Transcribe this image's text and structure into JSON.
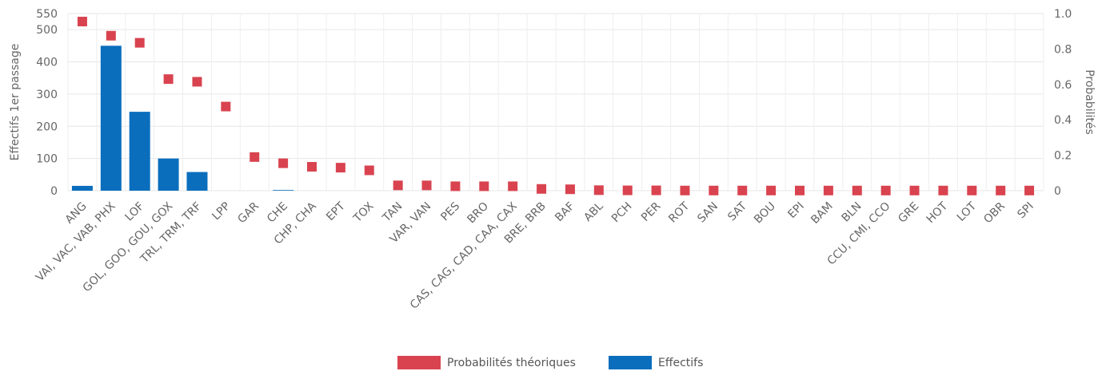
{
  "chart_data": {
    "type": "bar",
    "categories": [
      "ANG",
      "VAI, VAC, VAB, PHX",
      "LOF",
      "GOL, GOO, GOU, GOX",
      "TRL, TRM, TRF",
      "LPP",
      "GAR",
      "CHE",
      "CHP, CHA",
      "EPT",
      "TOX",
      "TAN",
      "VAR, VAN",
      "PES",
      "BRO",
      "CAS, CAG, CAD, CAA, CAX",
      "BRE, BRB",
      "BAF",
      "ABL",
      "PCH",
      "PER",
      "ROT",
      "SAN",
      "SAT",
      "BOU",
      "EPI",
      "BAM",
      "BLN",
      "CCU, CMI, CCO",
      "GRE",
      "HOT",
      "LOT",
      "OBR",
      "SPI"
    ],
    "series": [
      {
        "name": "Effectifs",
        "axis": "left",
        "mark": "bar",
        "color": "#0a6ebd",
        "values": [
          15,
          450,
          245,
          100,
          58,
          0,
          0,
          2,
          0,
          0,
          0,
          0,
          0,
          0,
          0,
          0,
          0,
          0,
          0,
          0,
          0,
          0,
          0,
          0,
          0,
          0,
          0,
          0,
          0,
          0,
          0,
          0,
          0,
          0
        ]
      },
      {
        "name": "Probabilités théoriques",
        "axis": "right",
        "mark": "square",
        "color": "#d9434f",
        "values": [
          0.955,
          0.875,
          0.835,
          0.63,
          0.615,
          0.475,
          0.19,
          0.155,
          0.135,
          0.13,
          0.115,
          0.03,
          0.03,
          0.025,
          0.025,
          0.025,
          0.01,
          0.008,
          0.003,
          0.002,
          0.002,
          0.001,
          0.001,
          0.001,
          0.001,
          0.001,
          0.001,
          0.001,
          0.001,
          0.001,
          0.001,
          0.001,
          0.001,
          0.001
        ]
      }
    ],
    "ylabel": "Effectifs 1er passage",
    "y2label": "Probabilités",
    "ylim": [
      0,
      550
    ],
    "y2lim": [
      0,
      1.0
    ],
    "yticks": [
      "0",
      "100",
      "200",
      "300",
      "400",
      "500",
      "550"
    ],
    "y2ticks": [
      "0",
      "0.2",
      "0.4",
      "0.6",
      "0.8",
      "1.0"
    ],
    "grid": true,
    "legend_position": "bottom"
  }
}
